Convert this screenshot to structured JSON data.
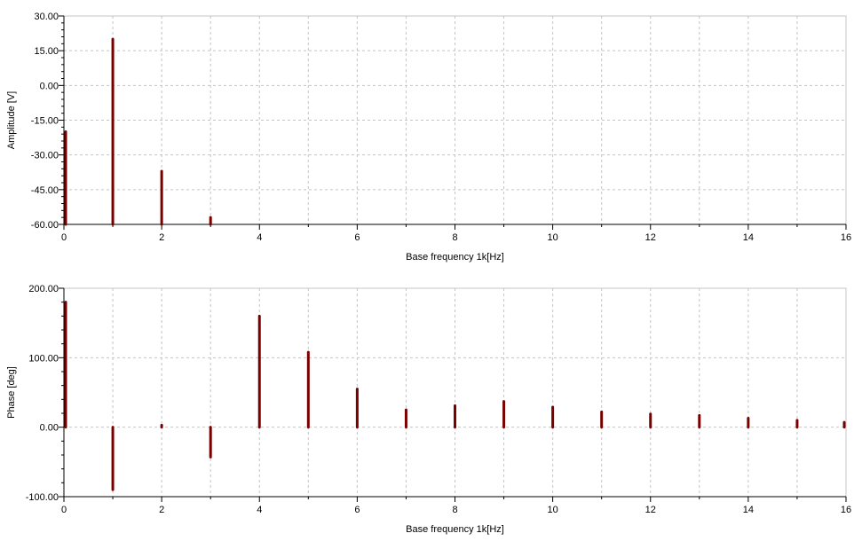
{
  "chart_data": [
    {
      "type": "bar",
      "xlabel": "Base frequency 1k[Hz]",
      "ylabel": "Amplitude [V]",
      "xlim": [
        0,
        16
      ],
      "ylim": [
        -60,
        30
      ],
      "xticks": [
        0,
        2,
        4,
        6,
        8,
        10,
        12,
        14,
        16
      ],
      "yticks": [
        30,
        15,
        0,
        -15,
        -30,
        -45,
        -60
      ],
      "ytick_labels": [
        "30.00",
        "15.00",
        "0.00",
        "-15.00",
        "-30.00",
        "-45.00",
        "-60.00"
      ],
      "grid": true,
      "color": "#7a0000",
      "baseline": -60,
      "x": [
        0,
        1,
        2,
        3
      ],
      "values": [
        -20,
        20,
        -37,
        -57
      ]
    },
    {
      "type": "bar",
      "xlabel": "Base frequency 1k[Hz]",
      "ylabel": "Phase [deg]",
      "xlim": [
        0,
        16
      ],
      "ylim": [
        -100,
        200
      ],
      "xticks": [
        0,
        2,
        4,
        6,
        8,
        10,
        12,
        14,
        16
      ],
      "yticks": [
        200,
        100,
        0,
        -100
      ],
      "ytick_labels": [
        "200.00",
        "100.00",
        "0.00",
        "-100.00"
      ],
      "grid": true,
      "color": "#7a0000",
      "baseline": 0,
      "x": [
        0,
        1,
        2,
        3,
        4,
        5,
        6,
        7,
        8,
        9,
        10,
        11,
        12,
        13,
        14,
        15,
        16
      ],
      "values": [
        180,
        -90,
        3,
        -43,
        160,
        108,
        55,
        25,
        31,
        37,
        29,
        22,
        19,
        17,
        13,
        10,
        7
      ]
    }
  ]
}
